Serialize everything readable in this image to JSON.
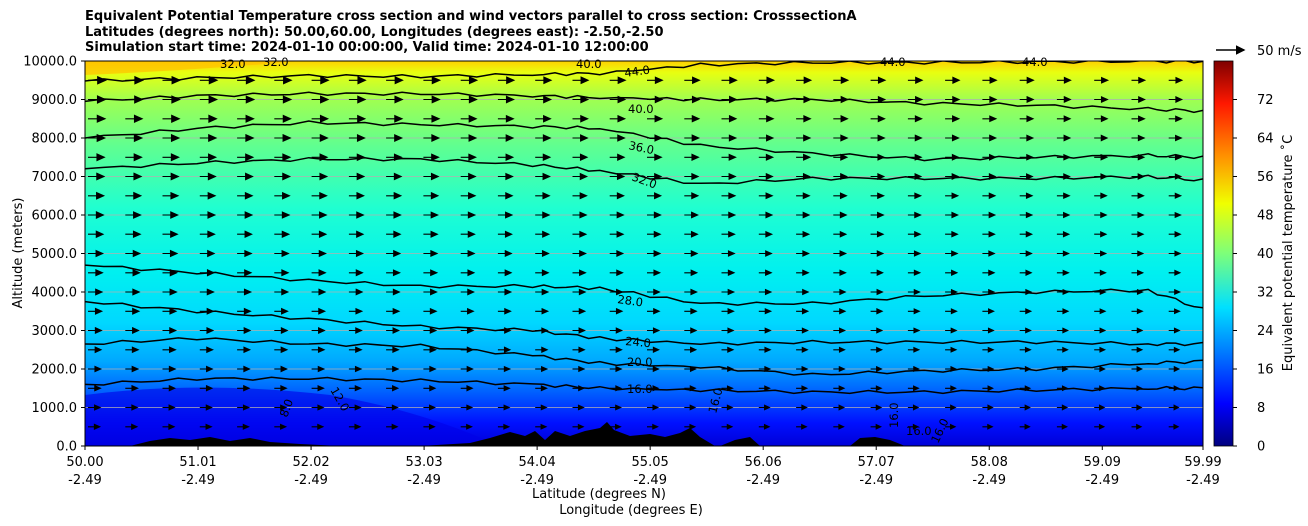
{
  "chart_data": {
    "type": "heatmap",
    "title_lines": [
      "Equivalent Potential Temperature cross section and wind vectors parallel to cross section: CrosssectionA",
      "Latitudes (degrees north): 50.00,60.00, Longitudes (degrees east): -2.50,-2.50",
      "Simulation start time: 2024-01-10 00:00:00, Valid time: 2024-01-10 12:00:00"
    ],
    "ylabel": "Altitude (meters)",
    "xlabel_lines": [
      "Latitude (degrees N)",
      "Longitude (degrees E)"
    ],
    "ylim": [
      0,
      10000
    ],
    "y_ticks": [
      "0.0",
      "1000.0",
      "2000.0",
      "3000.0",
      "4000.0",
      "5000.0",
      "6000.0",
      "7000.0",
      "8000.0",
      "9000.0",
      "10000.0"
    ],
    "y_tick_values": [
      0,
      1000,
      2000,
      3000,
      4000,
      5000,
      6000,
      7000,
      8000,
      9000,
      10000
    ],
    "x_ticks_lat": [
      "50.00",
      "51.01",
      "52.02",
      "53.03",
      "54.04",
      "55.05",
      "56.06",
      "57.07",
      "58.08",
      "59.09",
      "59.99"
    ],
    "x_ticks_lon": [
      "-2.49",
      "-2.49",
      "-2.49",
      "-2.49",
      "-2.49",
      "-2.49",
      "-2.49",
      "-2.49",
      "-2.49",
      "-2.49",
      "-2.49"
    ],
    "x_tick_values": [
      50.0,
      51.01,
      52.02,
      53.03,
      54.04,
      55.05,
      56.06,
      57.07,
      58.08,
      59.09,
      59.99
    ],
    "xlim": [
      50.0,
      59.99
    ],
    "grid": "horizontal",
    "colorbar": {
      "label": "Equivalent potential temperature $^\\circ$C",
      "label_text": "Equivalent potential temperature ˚C",
      "range": [
        0,
        80
      ],
      "ticks": [
        "0",
        "8",
        "16",
        "24",
        "32",
        "40",
        "48",
        "56",
        "64",
        "72"
      ],
      "tick_values": [
        0,
        8,
        16,
        24,
        32,
        40,
        48,
        56,
        64,
        72
      ],
      "colormap": "jet"
    },
    "wind_key": {
      "label": "50 m/s"
    },
    "contour_labels": [
      "44.0",
      "40.0",
      "36.0",
      "32.0",
      "28.0",
      "24.0",
      "20.0",
      "16.0",
      "16.0",
      "16.0",
      "16.0",
      "40.0",
      "44.0",
      "44.0",
      "32.0",
      "32.0",
      "8.0",
      "12.0",
      "16.0"
    ],
    "contours": [
      {
        "level": 44,
        "x": [
          50.0,
          51.0,
          52.0,
          53.0,
          54.0,
          54.6,
          55.5,
          56.5,
          57.5,
          58.5,
          59.5,
          59.99
        ],
        "y": [
          9480,
          9560,
          9620,
          9600,
          9650,
          9680,
          9900,
          9960,
          9960,
          9980,
          9990,
          9990
        ]
      },
      {
        "level": 40,
        "x": [
          50.0,
          51.0,
          52.0,
          53.0,
          54.0,
          54.6,
          55.5,
          56.5,
          57.5,
          58.5,
          59.5,
          59.99
        ],
        "y": [
          8950,
          9100,
          9150,
          9150,
          9100,
          9050,
          9000,
          9000,
          8900,
          8850,
          8750,
          8700
        ]
      },
      {
        "level": 36,
        "x": [
          50.0,
          51.0,
          52.0,
          53.0,
          54.0,
          54.6,
          55.5,
          56.5,
          57.5,
          58.5,
          59.5,
          59.99
        ],
        "y": [
          8000,
          8250,
          8400,
          8350,
          8300,
          8250,
          7800,
          7600,
          7450,
          7500,
          7550,
          7500
        ]
      },
      {
        "level": 32,
        "x": [
          50.0,
          51.0,
          52.0,
          53.0,
          54.0,
          54.6,
          55.5,
          56.5,
          57.5,
          58.5,
          59.5,
          59.99
        ],
        "y": [
          7200,
          7350,
          7450,
          7450,
          7300,
          7150,
          6800,
          6950,
          6950,
          6950,
          7000,
          6900
        ]
      },
      {
        "level": 28,
        "x": [
          50.0,
          51.0,
          52.0,
          53.0,
          54.0,
          54.6,
          55.5,
          56.5,
          57.5,
          58.5,
          59.5,
          59.99
        ],
        "y": [
          4700,
          4500,
          4300,
          4150,
          4150,
          4100,
          3700,
          3700,
          3900,
          4000,
          4050,
          3550
        ]
      },
      {
        "level": 24,
        "x": [
          50.0,
          51.0,
          52.0,
          53.0,
          54.0,
          54.6,
          55.5,
          56.5,
          57.5,
          58.5,
          59.5,
          59.99
        ],
        "y": [
          3750,
          3500,
          3300,
          3100,
          3000,
          2800,
          2650,
          2700,
          2700,
          2700,
          2650,
          2650
        ]
      },
      {
        "level": 20,
        "x": [
          50.0,
          51.0,
          52.0,
          53.0,
          54.0,
          54.6,
          55.5,
          56.5,
          57.5,
          58.5,
          59.5,
          59.99
        ],
        "y": [
          2650,
          2800,
          2650,
          2600,
          2350,
          2150,
          2050,
          1850,
          1950,
          2000,
          2150,
          2200
        ]
      },
      {
        "level": 16,
        "x": [
          50.0,
          51.0,
          52.0,
          53.0,
          54.0,
          54.6,
          55.5,
          56.5,
          57.5,
          58.5,
          59.5,
          59.99
        ],
        "y": [
          1600,
          1750,
          1750,
          1700,
          1600,
          1500,
          1450,
          1400,
          1400,
          1450,
          1500,
          1500
        ]
      }
    ]
  }
}
